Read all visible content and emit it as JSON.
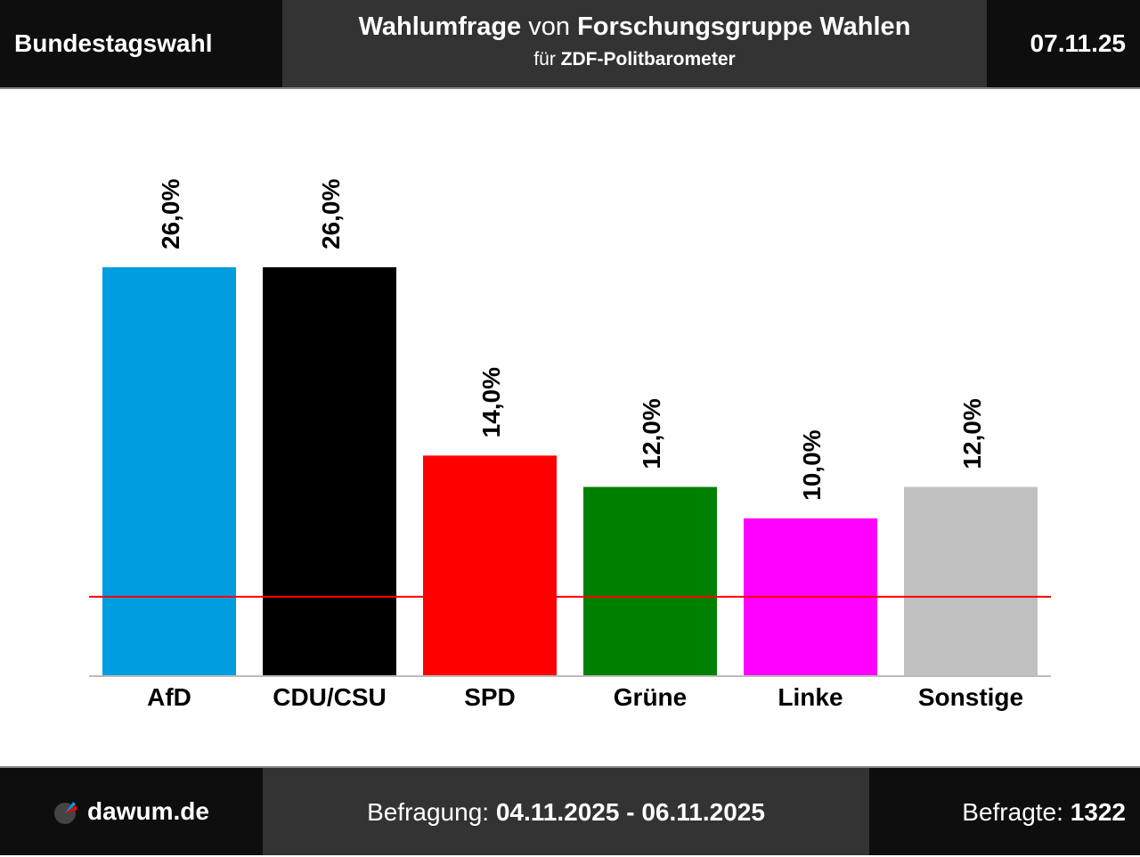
{
  "header": {
    "left": "Bundestagswahl",
    "title_bold1": "Wahlumfrage",
    "title_mid": "von",
    "title_bold2": "Forschungsgruppe Wahlen",
    "sub_pre": "für",
    "sub_bold": "ZDF-Politbarometer",
    "date": "07.11.25"
  },
  "footer": {
    "logo": "dawum.de",
    "period_label": "Befragung:",
    "period": "04.11.2025 - 06.11.2025",
    "sample_label": "Befragte:",
    "sample": "1322"
  },
  "chart_data": {
    "type": "bar",
    "categories": [
      "AfD",
      "CDU/CSU",
      "SPD",
      "Grüne",
      "Linke",
      "Sonstige"
    ],
    "values": [
      26,
      26,
      14,
      12,
      10,
      12
    ],
    "labels": [
      "26,0%",
      "26,0%",
      "14,0%",
      "12,0%",
      "10,0%",
      "12,0%"
    ],
    "colors": [
      "#009ee0",
      "#000000",
      "#ff0000",
      "#008000",
      "#ff00ff",
      "#c0c0c0"
    ],
    "threshold": 5,
    "threshold_color": "#ff0000",
    "ylim": [
      0,
      26
    ]
  }
}
